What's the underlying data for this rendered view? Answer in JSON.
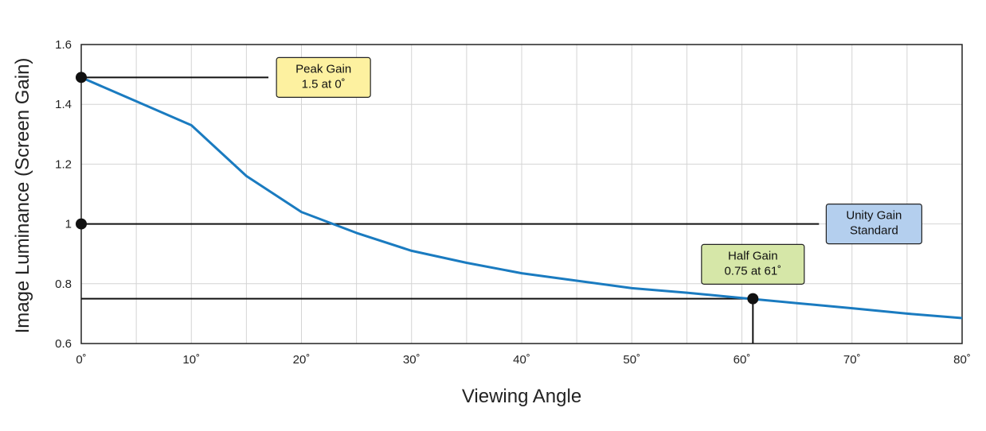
{
  "chart_data": {
    "type": "line",
    "xlabel": "Viewing Angle",
    "ylabel": "Image Luminance (Screen Gain)",
    "xlim": [
      0,
      80
    ],
    "ylim": [
      0.6,
      1.6
    ],
    "x_ticks": [
      0,
      10,
      20,
      30,
      40,
      50,
      60,
      70,
      80
    ],
    "x_tick_labels": [
      "0˚",
      "10˚",
      "20˚",
      "30˚",
      "40˚",
      "50˚",
      "60˚",
      "70˚",
      "80˚"
    ],
    "y_ticks": [
      0.6,
      0.8,
      1,
      1.2,
      1.4,
      1.6
    ],
    "y_tick_labels": [
      "0.6",
      "0.8",
      "1",
      "1.2",
      "1.4",
      "1.6"
    ],
    "grid": true,
    "x_minor_step": 5,
    "series": [
      {
        "color": "#1a7bc0",
        "x": [
          0,
          5,
          10,
          15,
          20,
          25,
          30,
          35,
          40,
          45,
          50,
          55,
          60,
          65,
          70,
          75,
          80
        ],
        "y": [
          1.49,
          1.41,
          1.33,
          1.16,
          1.04,
          0.97,
          0.91,
          0.87,
          0.835,
          0.81,
          0.785,
          0.77,
          0.752,
          0.735,
          0.718,
          0.7,
          0.685
        ]
      }
    ],
    "reference_lines": [
      {
        "kind": "horizontal",
        "y": 1.49,
        "x_from": 0,
        "x_to": 17
      },
      {
        "kind": "horizontal",
        "y": 1.0,
        "x_from": 0,
        "x_to": 67
      },
      {
        "kind": "horizontal",
        "y": 0.75,
        "x_from": 0,
        "x_to": 61
      },
      {
        "kind": "vertical",
        "x": 61,
        "y_from": 0.6,
        "y_to": 0.75
      }
    ],
    "markers": [
      {
        "x": 0,
        "y": 1.49
      },
      {
        "x": 0,
        "y": 1.0
      },
      {
        "x": 61,
        "y": 0.75
      }
    ],
    "annotations": [
      {
        "lines": [
          "Peak Gain",
          "1.5 at 0˚"
        ],
        "anchor_x": 22,
        "anchor_y": 1.49,
        "fill": "#fdf1a0"
      },
      {
        "lines": [
          "Unity Gain",
          "Standard"
        ],
        "anchor_x": 72,
        "anchor_y": 1.0,
        "fill": "#b4cfee"
      },
      {
        "lines": [
          "Half Gain",
          "0.75 at 61˚"
        ],
        "anchor_x": 61,
        "anchor_y": 0.865,
        "fill": "#d6e7a8"
      }
    ]
  }
}
